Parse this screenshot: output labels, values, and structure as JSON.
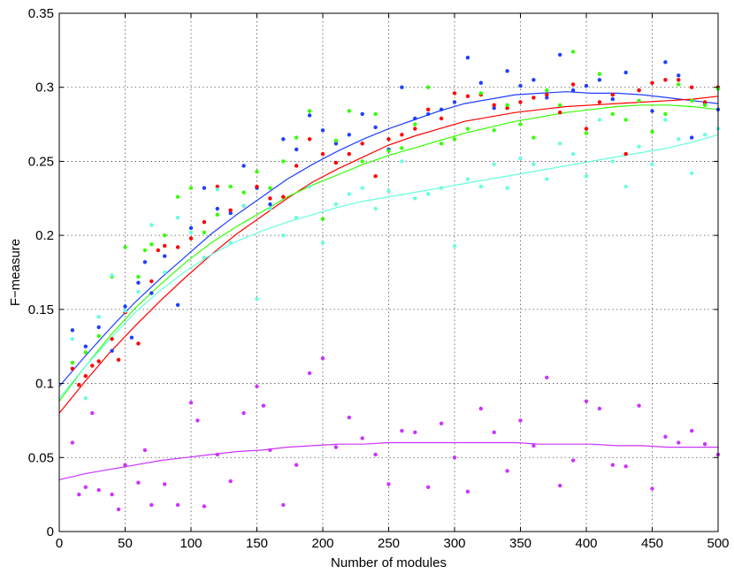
{
  "chart_data": {
    "type": "scatter",
    "title": "",
    "xlabel": "Number of modules",
    "ylabel": "F−measure",
    "xlim": [
      0,
      500
    ],
    "ylim": [
      0,
      0.35
    ],
    "xticks": [
      "0",
      "50",
      "100",
      "150",
      "200",
      "250",
      "300",
      "350",
      "400",
      "450",
      "500"
    ],
    "yticks": [
      "0",
      "0.05",
      "0.1",
      "0.15",
      "0.2",
      "0.25",
      "0.3",
      "0.35"
    ],
    "grid": true,
    "fit_lines": true,
    "series": [
      {
        "color": "#1f3fff",
        "x": [
          10,
          20,
          30,
          40,
          50,
          55,
          60,
          65,
          70,
          80,
          90,
          100,
          110,
          120,
          130,
          140,
          150,
          160,
          170,
          180,
          190,
          200,
          210,
          220,
          230,
          240,
          250,
          260,
          270,
          280,
          290,
          300,
          310,
          320,
          330,
          340,
          350,
          360,
          370,
          380,
          390,
          400,
          410,
          420,
          430,
          440,
          450,
          460,
          470,
          480,
          490,
          500
        ],
        "y": [
          0.136,
          0.125,
          0.138,
          0.122,
          0.152,
          0.131,
          0.168,
          0.182,
          0.161,
          0.186,
          0.153,
          0.205,
          0.232,
          0.218,
          0.215,
          0.247,
          0.232,
          0.221,
          0.265,
          0.258,
          0.281,
          0.271,
          0.262,
          0.268,
          0.282,
          0.273,
          0.258,
          0.3,
          0.279,
          0.282,
          0.285,
          0.29,
          0.32,
          0.303,
          0.286,
          0.311,
          0.301,
          0.305,
          0.293,
          0.322,
          0.298,
          0.301,
          0.305,
          0.292,
          0.31,
          0.298,
          0.284,
          0.317,
          0.308,
          0.266,
          0.289,
          0.285
        ],
        "fit": [
          0.098,
          0.118,
          0.137,
          0.155,
          0.171,
          0.186,
          0.201,
          0.214,
          0.226,
          0.238,
          0.248,
          0.257,
          0.265,
          0.272,
          0.278,
          0.284,
          0.289,
          0.292,
          0.295,
          0.296,
          0.297,
          0.296,
          0.296,
          0.295,
          0.293,
          0.291,
          0.289
        ]
      },
      {
        "color": "#ff0000",
        "x": [
          10,
          15,
          20,
          25,
          30,
          40,
          45,
          50,
          60,
          70,
          75,
          80,
          90,
          100,
          110,
          120,
          130,
          140,
          150,
          160,
          170,
          180,
          190,
          200,
          210,
          220,
          230,
          240,
          250,
          260,
          270,
          280,
          290,
          300,
          310,
          320,
          330,
          340,
          350,
          360,
          370,
          380,
          390,
          400,
          410,
          420,
          430,
          440,
          450,
          460,
          470,
          480,
          490,
          500
        ],
        "y": [
          0.11,
          0.099,
          0.105,
          0.112,
          0.115,
          0.13,
          0.116,
          0.148,
          0.127,
          0.169,
          0.19,
          0.193,
          0.192,
          0.198,
          0.209,
          0.233,
          0.217,
          0.22,
          0.233,
          0.225,
          0.226,
          0.247,
          0.265,
          0.255,
          0.249,
          0.255,
          0.262,
          0.24,
          0.265,
          0.268,
          0.272,
          0.285,
          0.279,
          0.296,
          0.294,
          0.295,
          0.288,
          0.286,
          0.29,
          0.293,
          0.295,
          0.283,
          0.302,
          0.272,
          0.29,
          0.295,
          0.255,
          0.298,
          0.303,
          0.305,
          0.305,
          0.3,
          0.29,
          0.3
        ],
        "fit": [
          0.08,
          0.101,
          0.121,
          0.139,
          0.156,
          0.172,
          0.187,
          0.201,
          0.213,
          0.225,
          0.236,
          0.245,
          0.253,
          0.261,
          0.267,
          0.272,
          0.277,
          0.28,
          0.283,
          0.285,
          0.287,
          0.288,
          0.289,
          0.29,
          0.291,
          0.292,
          0.294
        ]
      },
      {
        "color": "#33ff00",
        "x": [
          10,
          20,
          30,
          40,
          50,
          60,
          65,
          70,
          80,
          90,
          100,
          110,
          120,
          130,
          140,
          150,
          160,
          170,
          180,
          190,
          200,
          210,
          220,
          230,
          240,
          250,
          260,
          270,
          280,
          290,
          300,
          310,
          320,
          330,
          340,
          350,
          360,
          370,
          380,
          390,
          400,
          410,
          420,
          430,
          440,
          450,
          460,
          470,
          480,
          490,
          500
        ],
        "y": [
          0.114,
          0.121,
          0.132,
          0.172,
          0.192,
          0.172,
          0.19,
          0.194,
          0.2,
          0.226,
          0.232,
          0.202,
          0.214,
          0.233,
          0.229,
          0.243,
          0.232,
          0.25,
          0.266,
          0.284,
          0.211,
          0.264,
          0.284,
          0.25,
          0.282,
          0.257,
          0.259,
          0.275,
          0.3,
          0.262,
          0.265,
          0.272,
          0.296,
          0.271,
          0.288,
          0.275,
          0.266,
          0.298,
          0.288,
          0.324,
          0.269,
          0.309,
          0.282,
          0.278,
          0.291,
          0.27,
          0.282,
          0.302,
          0.291,
          0.288,
          0.299
        ],
        "fit": [
          0.088,
          0.111,
          0.132,
          0.151,
          0.167,
          0.182,
          0.195,
          0.206,
          0.216,
          0.226,
          0.234,
          0.241,
          0.248,
          0.254,
          0.259,
          0.264,
          0.269,
          0.273,
          0.277,
          0.28,
          0.283,
          0.285,
          0.287,
          0.288,
          0.288,
          0.287,
          0.285
        ]
      },
      {
        "color": "#66ffdd",
        "x": [
          10,
          20,
          30,
          40,
          50,
          60,
          70,
          80,
          90,
          100,
          110,
          120,
          130,
          140,
          150,
          160,
          170,
          180,
          190,
          200,
          210,
          220,
          230,
          240,
          250,
          260,
          270,
          280,
          290,
          300,
          310,
          320,
          330,
          340,
          350,
          360,
          370,
          380,
          390,
          400,
          410,
          420,
          430,
          440,
          450,
          460,
          470,
          480,
          490,
          500
        ],
        "y": [
          0.13,
          0.09,
          0.145,
          0.173,
          0.149,
          0.162,
          0.207,
          0.175,
          0.212,
          0.202,
          0.185,
          0.231,
          0.195,
          0.22,
          0.157,
          0.218,
          0.2,
          0.212,
          0.233,
          0.195,
          0.221,
          0.228,
          0.232,
          0.218,
          0.23,
          0.25,
          0.225,
          0.228,
          0.232,
          0.193,
          0.238,
          0.233,
          0.248,
          0.232,
          0.252,
          0.248,
          0.238,
          0.262,
          0.255,
          0.24,
          0.278,
          0.25,
          0.233,
          0.26,
          0.248,
          0.278,
          0.265,
          0.242,
          0.268,
          0.272
        ],
        "fit": [
          0.09,
          0.111,
          0.13,
          0.148,
          0.163,
          0.176,
          0.187,
          0.196,
          0.203,
          0.209,
          0.214,
          0.219,
          0.223,
          0.226,
          0.229,
          0.232,
          0.235,
          0.238,
          0.241,
          0.244,
          0.247,
          0.25,
          0.253,
          0.256,
          0.259,
          0.263,
          0.268
        ]
      },
      {
        "color": "#cc33ff",
        "x": [
          10,
          15,
          20,
          25,
          30,
          40,
          45,
          50,
          60,
          65,
          70,
          80,
          90,
          100,
          105,
          110,
          120,
          130,
          140,
          150,
          155,
          160,
          170,
          180,
          190,
          200,
          210,
          220,
          230,
          240,
          250,
          260,
          270,
          280,
          290,
          300,
          310,
          320,
          330,
          340,
          350,
          360,
          370,
          380,
          390,
          400,
          410,
          420,
          430,
          440,
          450,
          460,
          470,
          480,
          490,
          500
        ],
        "y": [
          0.06,
          0.025,
          0.03,
          0.08,
          0.028,
          0.025,
          0.015,
          0.045,
          0.033,
          0.055,
          0.018,
          0.032,
          0.018,
          0.087,
          0.075,
          0.017,
          0.052,
          0.034,
          0.08,
          0.098,
          0.085,
          0.055,
          0.018,
          0.045,
          0.107,
          0.117,
          0.057,
          0.077,
          0.063,
          0.052,
          0.032,
          0.068,
          0.067,
          0.03,
          0.073,
          0.05,
          0.027,
          0.083,
          0.067,
          0.041,
          0.075,
          0.058,
          0.104,
          0.031,
          0.048,
          0.088,
          0.083,
          0.045,
          0.044,
          0.085,
          0.029,
          0.064,
          0.06,
          0.068,
          0.059,
          0.052
        ],
        "fit": [
          0.035,
          0.039,
          0.042,
          0.045,
          0.048,
          0.05,
          0.052,
          0.054,
          0.055,
          0.057,
          0.058,
          0.059,
          0.059,
          0.06,
          0.06,
          0.06,
          0.06,
          0.06,
          0.06,
          0.059,
          0.059,
          0.059,
          0.058,
          0.058,
          0.057,
          0.057,
          0.057
        ]
      }
    ]
  }
}
